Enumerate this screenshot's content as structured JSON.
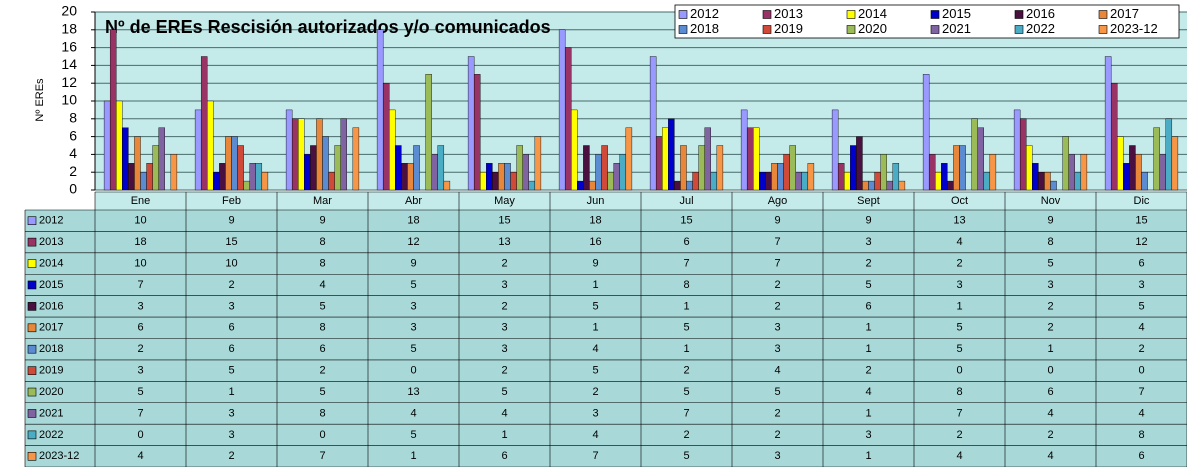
{
  "chart_data": {
    "type": "bar",
    "title": "Nº de EREs Rescisión autorizados y/o comunicados",
    "y_label": "Nº EREs",
    "categories": [
      "Ene",
      "Feb",
      "Mar",
      "Abr",
      "May",
      "Jun",
      "Jul",
      "Ago",
      "Sept",
      "Oct",
      "Nov",
      "Dic"
    ],
    "ylim": [
      0,
      20
    ],
    "yticks": [
      0,
      2,
      4,
      6,
      8,
      10,
      12,
      14,
      16,
      18,
      20
    ],
    "grid": true,
    "legend": "top-right",
    "series": [
      {
        "name": "2012",
        "color": "#9999ff",
        "values": [
          10,
          9,
          9,
          18,
          15,
          18,
          15,
          9,
          9,
          13,
          9,
          15
        ]
      },
      {
        "name": "2013",
        "color": "#993366",
        "values": [
          18,
          15,
          8,
          12,
          13,
          16,
          6,
          7,
          3,
          4,
          8,
          12
        ]
      },
      {
        "name": "2014",
        "color": "#ffff00",
        "values": [
          10,
          10,
          8,
          9,
          2,
          9,
          7,
          7,
          2,
          2,
          5,
          6
        ]
      },
      {
        "name": "2015",
        "color": "#0000cc",
        "values": [
          7,
          2,
          4,
          5,
          3,
          1,
          8,
          2,
          5,
          3,
          3,
          3
        ]
      },
      {
        "name": "2016",
        "color": "#4a1040",
        "values": [
          3,
          3,
          5,
          3,
          2,
          5,
          1,
          2,
          6,
          1,
          2,
          5
        ]
      },
      {
        "name": "2017",
        "color": "#e8863a",
        "values": [
          6,
          6,
          8,
          3,
          3,
          1,
          5,
          3,
          1,
          5,
          2,
          4
        ]
      },
      {
        "name": "2018",
        "color": "#5b8bd0",
        "values": [
          2,
          6,
          6,
          5,
          3,
          4,
          1,
          3,
          1,
          5,
          1,
          2
        ]
      },
      {
        "name": "2019",
        "color": "#d04a3a",
        "values": [
          3,
          5,
          2,
          0,
          2,
          5,
          2,
          4,
          2,
          0,
          0,
          0
        ]
      },
      {
        "name": "2020",
        "color": "#9bbb59",
        "values": [
          5,
          1,
          5,
          13,
          5,
          2,
          5,
          5,
          4,
          8,
          6,
          7
        ]
      },
      {
        "name": "2021",
        "color": "#8064a2",
        "values": [
          7,
          3,
          8,
          4,
          4,
          3,
          7,
          2,
          1,
          7,
          4,
          4
        ]
      },
      {
        "name": "2022",
        "color": "#4bacc6",
        "values": [
          0,
          3,
          0,
          5,
          1,
          4,
          2,
          2,
          3,
          2,
          2,
          8
        ]
      },
      {
        "name": "2023-12",
        "color": "#f79646",
        "values": [
          4,
          2,
          7,
          1,
          6,
          7,
          5,
          3,
          1,
          4,
          4,
          6
        ]
      }
    ]
  }
}
